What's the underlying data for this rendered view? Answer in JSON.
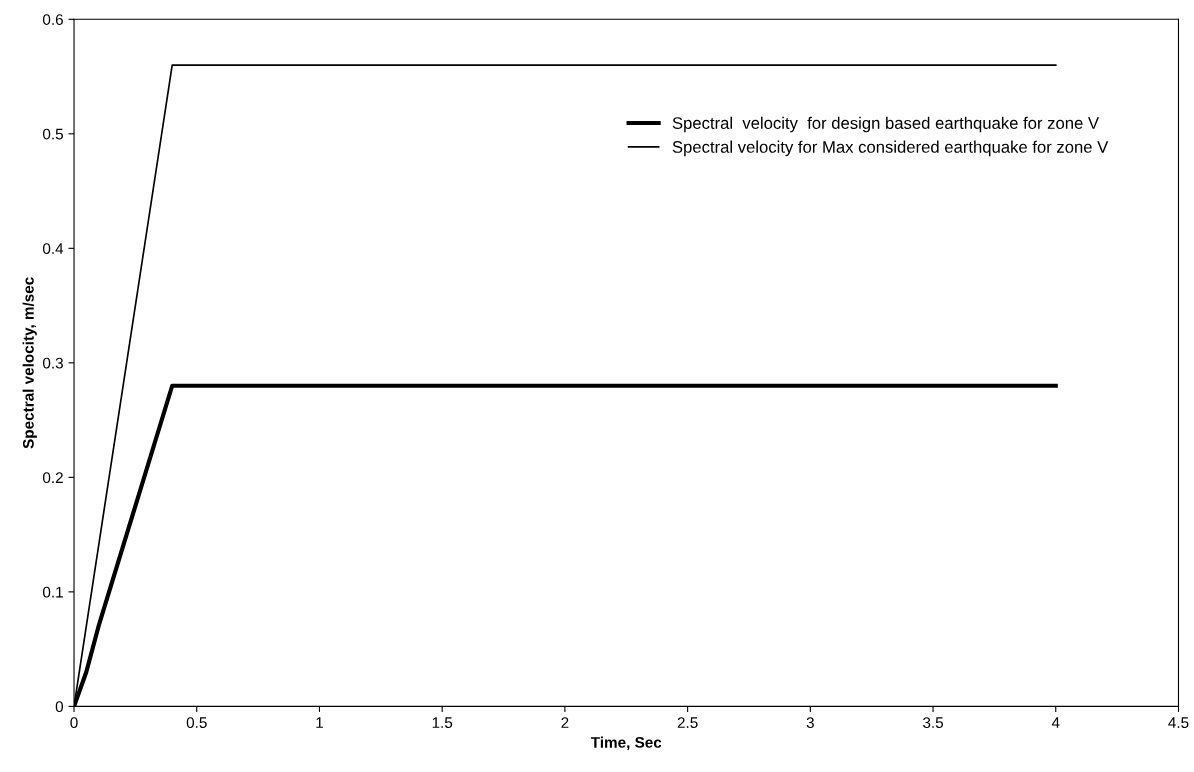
{
  "chart_data": {
    "type": "line",
    "xlabel": "Time, Sec",
    "ylabel": "Spectral velocity, m/sec",
    "xlim": [
      0,
      4.5
    ],
    "xticks": [
      0,
      0.5,
      1,
      1.5,
      2,
      2.5,
      3,
      3.5,
      4,
      4.5
    ],
    "ylim": [
      0,
      0.6
    ],
    "yticks": [
      0,
      0.1,
      0.2,
      0.3,
      0.4,
      0.5,
      0.6
    ],
    "grid": false,
    "legend": "top right",
    "marker": "none",
    "line_style": "solid",
    "series": [
      {
        "name": "Spectral  velocity  for design based earthquake for zone V",
        "color": "#000000",
        "x": [
          0,
          0.05,
          0.1,
          0.4,
          4
        ],
        "values": [
          0,
          0.03,
          0.07,
          0.28,
          0.28
        ]
      },
      {
        "name": "Spectral velocity for Max considered earthquake for zone V",
        "color": "#000000",
        "x": [
          0,
          0.4,
          4
        ],
        "values": [
          0,
          0.56,
          0.56
        ]
      }
    ]
  }
}
